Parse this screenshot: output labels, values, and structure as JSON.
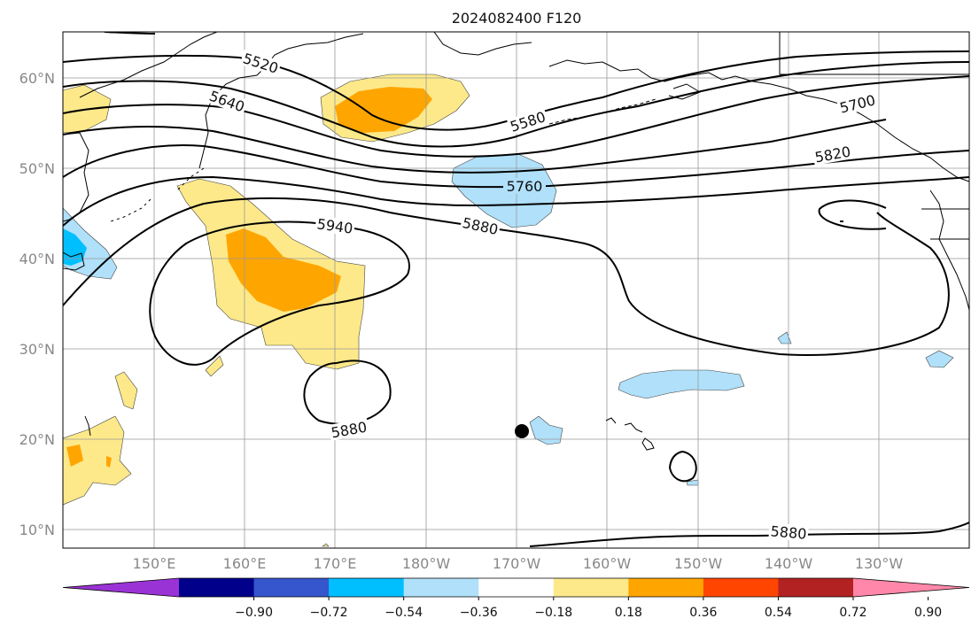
{
  "title": "2024082400 F120",
  "lat_labels": [
    "60°N",
    "50°N",
    "40°N",
    "30°N",
    "20°N",
    "10°N"
  ],
  "lon_labels": [
    "150°E",
    "160°E",
    "170°E",
    "180°W",
    "170°W",
    "160°W",
    "150°W",
    "140°W",
    "130°W"
  ],
  "contour_labels": [
    "5520",
    "5640",
    "5580",
    "5700",
    "5820",
    "5760",
    "5880",
    "5940",
    "5880",
    "5880"
  ],
  "colorbar": {
    "tick_labels": [
      "−0.90",
      "−0.72",
      "−0.54",
      "−0.36",
      "−0.18",
      "0.18",
      "0.36",
      "0.54",
      "0.72",
      "0.90"
    ],
    "colors": [
      "#9a33d6",
      "#00008b",
      "#3556cc",
      "#00bfff",
      "#b0e0fa",
      "#ffffff",
      "#fde98a",
      "#ffa500",
      "#ff4500",
      "#b22222",
      "#ff88aa"
    ]
  },
  "marker": {
    "label": "",
    "color": "#000000"
  }
}
